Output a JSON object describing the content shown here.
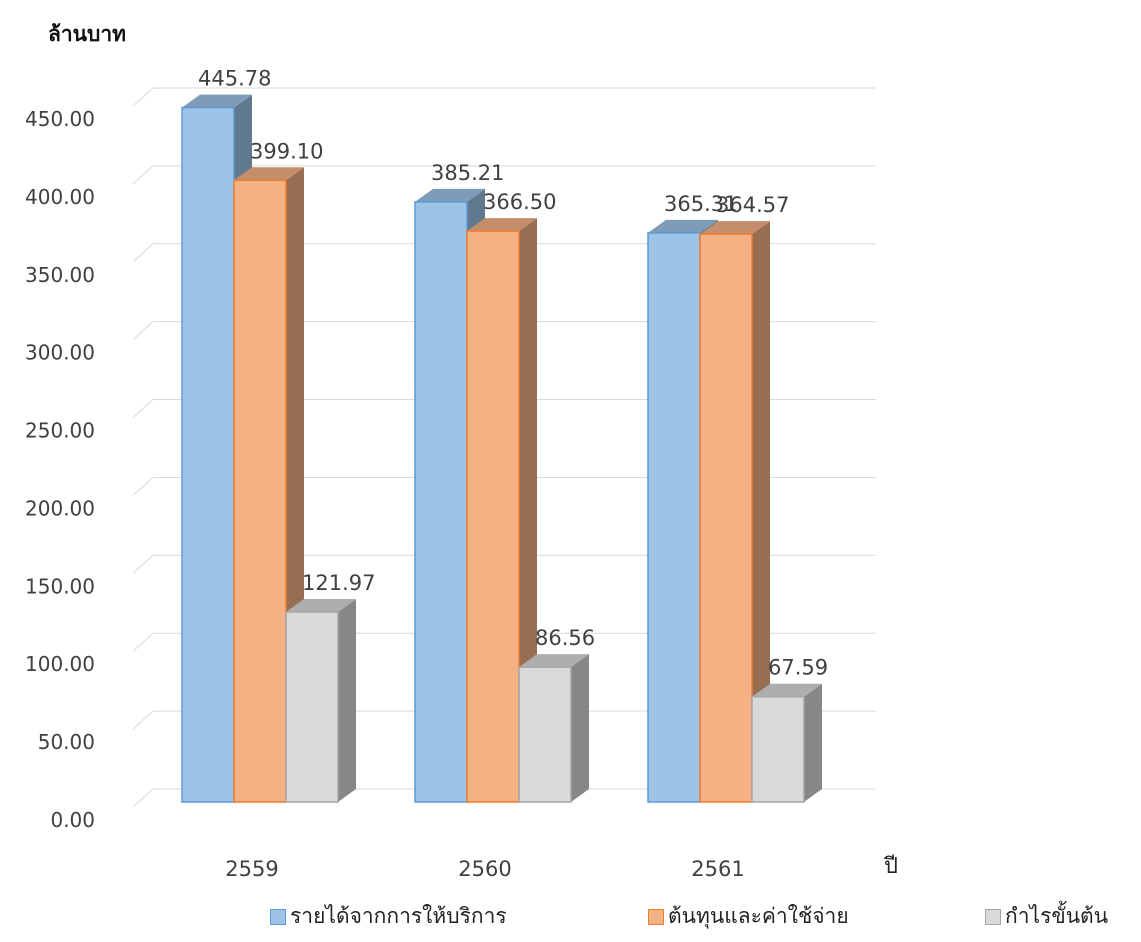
{
  "chart_data": {
    "type": "bar",
    "style": "3d-clustered-column",
    "ylabel": "ล้านบาท",
    "xlabel": "ปี",
    "categories": [
      "2559",
      "2560",
      "2561"
    ],
    "series": [
      {
        "name": "รายได้จากการให้บริการ",
        "values": [
          445.78,
          385.21,
          365.31
        ],
        "labels": [
          "445.78",
          "385.21",
          "365.31"
        ],
        "color": "#9dc3e6",
        "border": "#5b9bd5"
      },
      {
        "name": "ต้นทุนและค่าใช้จ่าย",
        "values": [
          399.1,
          366.5,
          364.57
        ],
        "labels": [
          "399.10",
          "366.50",
          "364.57"
        ],
        "color": "#f4b183",
        "border": "#ed7d31"
      },
      {
        "name": "กำไรขั้นต้น",
        "values": [
          121.97,
          86.56,
          67.59
        ],
        "labels": [
          "121.97",
          "86.56",
          "67.59"
        ],
        "color": "#d9d9d9",
        "border": "#a6a6a6"
      }
    ],
    "ylim": [
      0,
      450
    ],
    "ytick_labels": [
      "0.00",
      "50.00",
      "100.00",
      "150.00",
      "200.00",
      "250.00",
      "300.00",
      "350.00",
      "400.00",
      "450.00"
    ],
    "grid": true,
    "legend": "bottom"
  }
}
